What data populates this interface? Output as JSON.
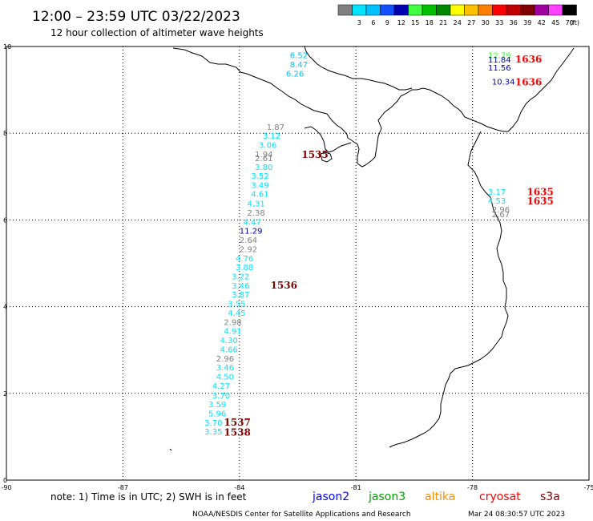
{
  "header": {
    "title": "12:00 – 23:59 UTC 03/22/2023",
    "subtitle": "12 hour collection of altimeter wave heights",
    "scale_unit": "(ft)"
  },
  "color_scale": [
    {
      "label": "",
      "color": "#808080"
    },
    {
      "label": "3",
      "color": "#00e5ff"
    },
    {
      "label": "6",
      "color": "#00c0ff"
    },
    {
      "label": "9",
      "color": "#1050ff"
    },
    {
      "label": "12",
      "color": "#0000b0"
    },
    {
      "label": "15",
      "color": "#40ff40"
    },
    {
      "label": "18",
      "color": "#00c000"
    },
    {
      "label": "21",
      "color": "#008800"
    },
    {
      "label": "24",
      "color": "#ffff00"
    },
    {
      "label": "27",
      "color": "#ffc000"
    },
    {
      "label": "30",
      "color": "#ff8000"
    },
    {
      "label": "33",
      "color": "#ff0000"
    },
    {
      "label": "36",
      "color": "#c00000"
    },
    {
      "label": "39",
      "color": "#800000"
    },
    {
      "label": "42",
      "color": "#a000a0"
    },
    {
      "label": "45",
      "color": "#ff40ff"
    },
    {
      "label": "70",
      "color": "#000000"
    }
  ],
  "axes": {
    "lon_ticks": [
      "-90",
      "-87",
      "-84",
      "-81",
      "-78",
      "-75"
    ],
    "lat_ticks": [
      "10",
      "8",
      "6",
      "4",
      "2",
      "0"
    ],
    "lon_range": [
      -90,
      -75
    ],
    "lat_range": [
      0,
      10
    ]
  },
  "swh_labels": [
    {
      "text": "6.52",
      "lon": -82.7,
      "lat": 9.73,
      "color": "#00c0ff"
    },
    {
      "text": "8.47",
      "lon": -82.7,
      "lat": 9.52,
      "color": "#00c0ff"
    },
    {
      "text": "6.26",
      "lon": -82.8,
      "lat": 9.31,
      "color": "#00c0ff"
    },
    {
      "text": "12.79",
      "lon": -77.6,
      "lat": 9.73,
      "color": "#40ff40"
    },
    {
      "text": "11.84",
      "lon": -77.6,
      "lat": 9.63,
      "color": "#0000b0"
    },
    {
      "text": "11.56",
      "lon": -77.6,
      "lat": 9.45,
      "color": "#0000b0"
    },
    {
      "text": "10.34",
      "lon": -77.5,
      "lat": 9.12,
      "color": "#0000b0"
    },
    {
      "text": "1.87",
      "lon": -83.3,
      "lat": 8.08,
      "color": "#808080"
    },
    {
      "text": "3.12",
      "lon": -83.4,
      "lat": 7.87,
      "color": "#00e5ff"
    },
    {
      "text": "3.06",
      "lon": -83.5,
      "lat": 7.66,
      "color": "#00e5ff"
    },
    {
      "text": "1.94",
      "lon": -83.6,
      "lat": 7.45,
      "color": "#808080"
    },
    {
      "text": "2.61",
      "lon": -83.6,
      "lat": 7.36,
      "color": "#808080"
    },
    {
      "text": "3.80",
      "lon": -83.6,
      "lat": 7.15,
      "color": "#00e5ff"
    },
    {
      "text": "3.52",
      "lon": -83.7,
      "lat": 6.95,
      "color": "#00e5ff"
    },
    {
      "text": "3.49",
      "lon": -83.7,
      "lat": 6.74,
      "color": "#00e5ff"
    },
    {
      "text": "4.61",
      "lon": -83.7,
      "lat": 6.53,
      "color": "#00e5ff"
    },
    {
      "text": "4.31",
      "lon": -83.8,
      "lat": 6.31,
      "color": "#00e5ff"
    },
    {
      "text": "2.38",
      "lon": -83.8,
      "lat": 6.1,
      "color": "#808080"
    },
    {
      "text": "4.47",
      "lon": -83.9,
      "lat": 5.89,
      "color": "#00e5ff"
    },
    {
      "text": "11.29",
      "lon": -84.0,
      "lat": 5.68,
      "color": "#0000b0"
    },
    {
      "text": "2.64",
      "lon": -84.0,
      "lat": 5.47,
      "color": "#808080"
    },
    {
      "text": "2.92",
      "lon": -84.0,
      "lat": 5.26,
      "color": "#808080"
    },
    {
      "text": "4.76",
      "lon": -84.1,
      "lat": 5.05,
      "color": "#00e5ff"
    },
    {
      "text": "3.88",
      "lon": -84.1,
      "lat": 4.84,
      "color": "#00e5ff"
    },
    {
      "text": "3.22",
      "lon": -84.2,
      "lat": 4.63,
      "color": "#00e5ff"
    },
    {
      "text": "3.46",
      "lon": -84.2,
      "lat": 4.42,
      "color": "#00e5ff"
    },
    {
      "text": "3.87",
      "lon": -84.2,
      "lat": 4.21,
      "color": "#00e5ff"
    },
    {
      "text": "3.55",
      "lon": -84.3,
      "lat": 4.0,
      "color": "#00e5ff"
    },
    {
      "text": "4.45",
      "lon": -84.3,
      "lat": 3.79,
      "color": "#00e5ff"
    },
    {
      "text": "2.98",
      "lon": -84.4,
      "lat": 3.58,
      "color": "#808080"
    },
    {
      "text": "4.91",
      "lon": -84.4,
      "lat": 3.37,
      "color": "#00e5ff"
    },
    {
      "text": "4.30",
      "lon": -84.5,
      "lat": 3.16,
      "color": "#00e5ff"
    },
    {
      "text": "4.66",
      "lon": -84.5,
      "lat": 2.95,
      "color": "#00e5ff"
    },
    {
      "text": "2.96",
      "lon": -84.6,
      "lat": 2.74,
      "color": "#808080"
    },
    {
      "text": "3.46",
      "lon": -84.6,
      "lat": 2.53,
      "color": "#00e5ff"
    },
    {
      "text": "4.50",
      "lon": -84.6,
      "lat": 2.32,
      "color": "#00e5ff"
    },
    {
      "text": "4.27",
      "lon": -84.7,
      "lat": 2.11,
      "color": "#00e5ff"
    },
    {
      "text": "3.70",
      "lon": -84.7,
      "lat": 1.89,
      "color": "#00e5ff"
    },
    {
      "text": "3.59",
      "lon": -84.8,
      "lat": 1.68,
      "color": "#00e5ff"
    },
    {
      "text": "5.96",
      "lon": -84.8,
      "lat": 1.47,
      "color": "#00e5ff"
    },
    {
      "text": "3.70",
      "lon": -84.9,
      "lat": 1.26,
      "color": "#00e5ff"
    },
    {
      "text": "3.35",
      "lon": -84.9,
      "lat": 1.05,
      "color": "#00e5ff"
    },
    {
      "text": "3.17",
      "lon": -77.6,
      "lat": 6.58,
      "color": "#00e5ff"
    },
    {
      "text": "4.53",
      "lon": -77.6,
      "lat": 6.38,
      "color": "#00e5ff"
    },
    {
      "text": "2.96",
      "lon": -77.5,
      "lat": 6.17,
      "color": "#808080"
    },
    {
      "text": "2.67",
      "lon": -77.5,
      "lat": 6.06,
      "color": "#808080"
    }
  ],
  "pass_labels": [
    {
      "text": "1636",
      "lon": -76.9,
      "lat": 9.63,
      "color": "#ff0000"
    },
    {
      "text": "1636",
      "lon": -76.9,
      "lat": 9.1,
      "color": "#ff0000"
    },
    {
      "text": "1535",
      "lon": -82.4,
      "lat": 7.43,
      "color": "#800000"
    },
    {
      "text": "1635",
      "lon": -76.6,
      "lat": 6.57,
      "color": "#ff0000"
    },
    {
      "text": "1635",
      "lon": -76.6,
      "lat": 6.36,
      "color": "#ff0000"
    },
    {
      "text": "1536",
      "lon": -83.2,
      "lat": 4.42,
      "color": "#800000"
    },
    {
      "text": "1537",
      "lon": -84.4,
      "lat": 1.26,
      "color": "#800000"
    },
    {
      "text": "1538",
      "lon": -84.4,
      "lat": 1.03,
      "color": "#800000"
    }
  ],
  "footer": {
    "note": "note:  1) Time is in UTC; 2) SWH is in feet",
    "legend": [
      {
        "text": "jason2",
        "color": "#0000ff"
      },
      {
        "text": "jason3",
        "color": "#00a000"
      },
      {
        "text": "altika",
        "color": "#ff9000"
      },
      {
        "text": "cryosat",
        "color": "#ff0000"
      },
      {
        "text": "s3a",
        "color": "#800000"
      }
    ],
    "credit": "NOAA/NESDIS Center for Satellite Applications and Research",
    "timestamp": "Mar 24 08:30:57 UTC 2023"
  }
}
